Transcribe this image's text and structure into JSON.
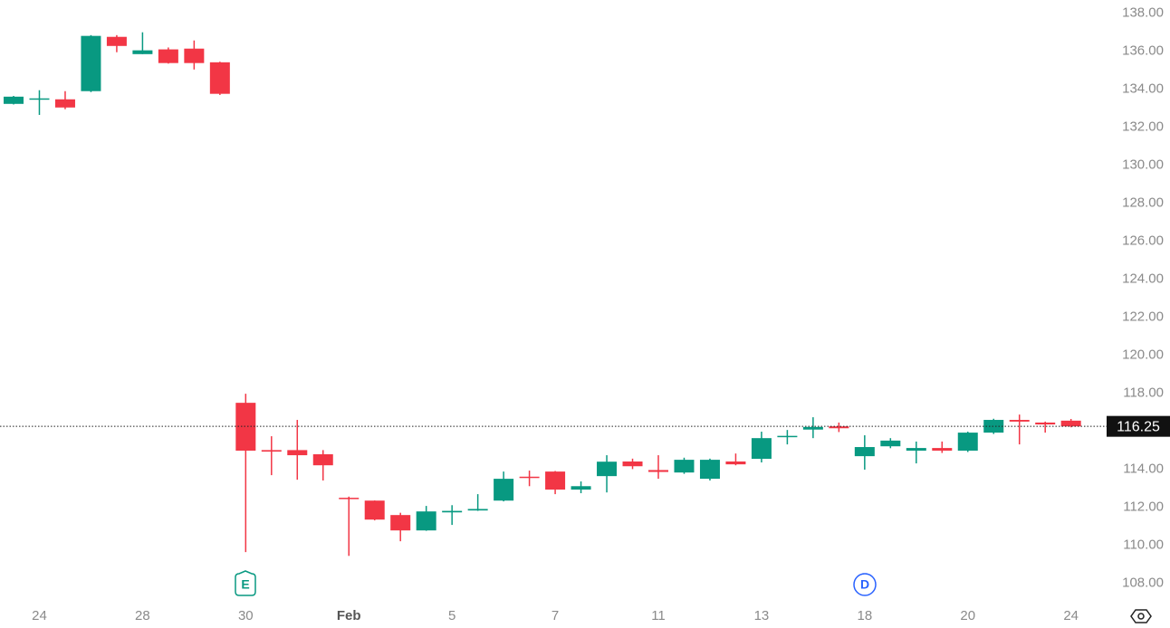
{
  "chart_data": {
    "type": "candlestick",
    "categories": [
      null,
      "24",
      null,
      null,
      null,
      "28",
      null,
      null,
      null,
      "30",
      null,
      null,
      null,
      "Feb",
      null,
      null,
      null,
      "5",
      null,
      null,
      null,
      "7",
      null,
      null,
      null,
      "11",
      null,
      null,
      null,
      "13",
      null,
      null,
      null,
      "18",
      null,
      null,
      null,
      "20",
      null,
      null,
      null,
      "24"
    ],
    "open": [
      133.23,
      133.5,
      133.47,
      133.9,
      136.76,
      135.85,
      136.1,
      136.14,
      135.42,
      117.49,
      115.0,
      115.0,
      114.78,
      112.49,
      112.34,
      111.58,
      110.77,
      111.72,
      111.82,
      112.34,
      113.6,
      113.87,
      112.92,
      113.63,
      114.4,
      113.95,
      113.82,
      113.49,
      114.4,
      114.54,
      115.7,
      116.08,
      116.25,
      114.68,
      115.2,
      114.97,
      115.11,
      114.97,
      115.92,
      116.59,
      116.45,
      116.55
    ],
    "high": [
      133.65,
      133.95,
      133.9,
      136.85,
      136.85,
      137.0,
      136.2,
      136.57,
      135.45,
      117.97,
      115.73,
      116.59,
      115.0,
      112.55,
      112.35,
      111.7,
      112.06,
      112.1,
      112.68,
      113.87,
      113.92,
      113.9,
      113.35,
      114.73,
      114.55,
      114.73,
      114.6,
      114.55,
      114.82,
      115.97,
      116.06,
      116.73,
      116.45,
      115.78,
      115.63,
      115.45,
      115.45,
      115.97,
      116.65,
      116.87,
      116.5,
      116.64
    ],
    "low": [
      133.2,
      132.65,
      132.95,
      133.85,
      135.95,
      135.85,
      135.35,
      135.04,
      133.7,
      109.63,
      113.68,
      113.44,
      113.4,
      109.43,
      111.3,
      110.2,
      110.75,
      111.06,
      111.8,
      112.3,
      113.1,
      112.68,
      112.73,
      112.77,
      114.0,
      113.49,
      113.75,
      113.4,
      114.2,
      114.35,
      115.3,
      115.63,
      115.95,
      113.97,
      115.1,
      114.3,
      114.85,
      114.9,
      115.85,
      115.3,
      115.92,
      116.2
    ],
    "close": [
      133.61,
      133.52,
      133.04,
      136.81,
      136.28,
      136.05,
      135.38,
      135.38,
      133.76,
      114.97,
      114.92,
      114.73,
      114.2,
      112.45,
      111.34,
      110.77,
      111.77,
      111.8,
      111.9,
      113.49,
      113.57,
      112.92,
      113.1,
      114.39,
      114.15,
      113.85,
      114.49,
      114.49,
      114.25,
      115.63,
      115.75,
      116.22,
      116.15,
      115.16,
      115.5,
      115.11,
      114.97,
      115.92,
      116.59,
      116.5,
      116.35,
      116.25
    ],
    "up_color": "#089981",
    "down_color": "#f23645",
    "ylim": [
      107.3,
      138.7
    ],
    "yticks": [
      {
        "value": 108,
        "label": "108.00"
      },
      {
        "value": 110,
        "label": "110.00"
      },
      {
        "value": 112,
        "label": "112.00"
      },
      {
        "value": 114,
        "label": "114.00"
      },
      {
        "value": 116,
        "label": "116.00"
      },
      {
        "value": 118,
        "label": "118.00"
      },
      {
        "value": 120,
        "label": "120.00"
      },
      {
        "value": 122,
        "label": "122.00"
      },
      {
        "value": 124,
        "label": "124.00"
      },
      {
        "value": 126,
        "label": "126.00"
      },
      {
        "value": 128,
        "label": "128.00"
      },
      {
        "value": 130,
        "label": "130.00"
      },
      {
        "value": 132,
        "label": "132.00"
      },
      {
        "value": 134,
        "label": "134.00"
      },
      {
        "value": 136,
        "label": "136.00"
      },
      {
        "value": 138,
        "label": "138.00"
      }
    ],
    "last_price": 116.25,
    "events": [
      "E",
      "D"
    ]
  }
}
